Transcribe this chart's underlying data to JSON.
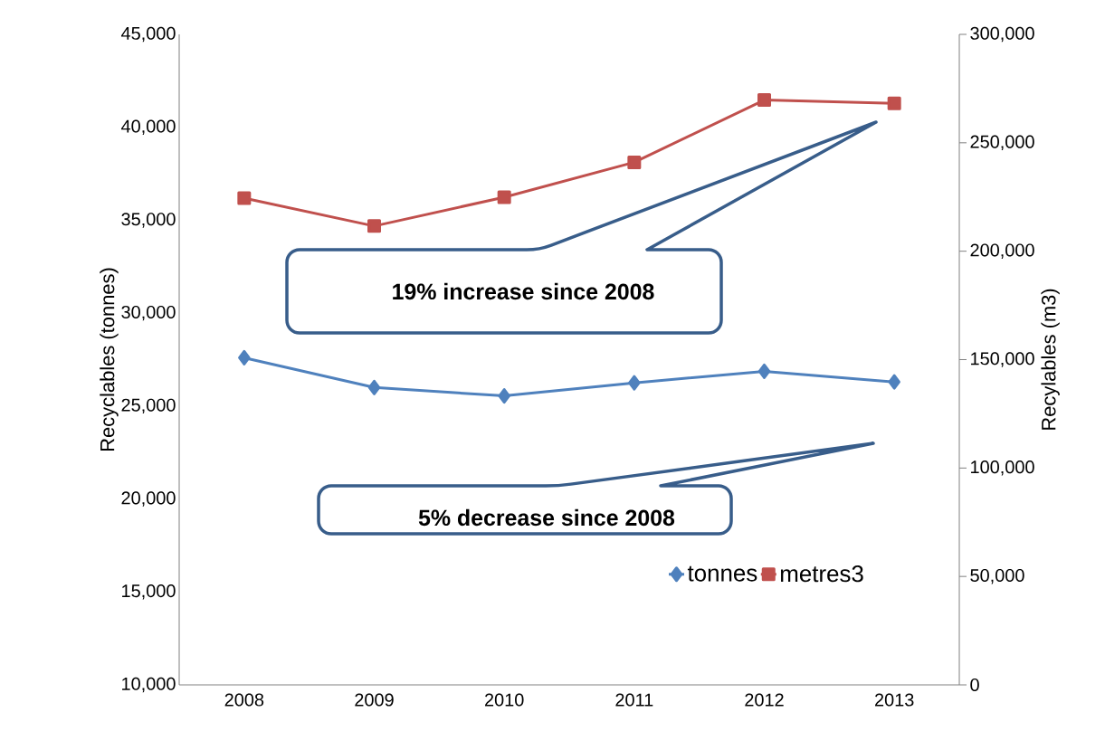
{
  "chart_data": {
    "type": "line",
    "categories": [
      "2008",
      "2009",
      "2010",
      "2011",
      "2012",
      "2013"
    ],
    "series": [
      {
        "name": "tonnes",
        "color": "#4f81bd",
        "marker": "diamond",
        "values": [
          27600,
          26000,
          25550,
          26250,
          26870,
          26300
        ]
      },
      {
        "name": "metres3",
        "color": "#c0504d",
        "marker": "square",
        "axis": "y2",
        "values": [
          224500,
          211600,
          224900,
          241000,
          269700,
          268200
        ]
      }
    ],
    "ylabel": "Recyclables (tonnes)",
    "y2label": "Recylables (m3)",
    "ylim": [
      10000,
      45000
    ],
    "yticks": [
      {
        "value": 10000,
        "label": "10,000"
      },
      {
        "value": 15000,
        "label": "15,000"
      },
      {
        "value": 20000,
        "label": "20,000"
      },
      {
        "value": 25000,
        "label": "25,000"
      },
      {
        "value": 30000,
        "label": "30,000"
      },
      {
        "value": 35000,
        "label": "35,000"
      },
      {
        "value": 40000,
        "label": "40,000"
      },
      {
        "value": 45000,
        "label": "45,000"
      }
    ],
    "y2lim": [
      0,
      300000
    ],
    "y2ticks": [
      0,
      {
        "value": 50000,
        "label": "50,000"
      },
      {
        "value": 100000,
        "label": "100,000"
      },
      {
        "value": 150000,
        "label": "150,000"
      },
      {
        "value": 200000,
        "label": "200,000"
      },
      {
        "value": 250000,
        "label": "250,000"
      },
      {
        "value": 300000,
        "label": "300,000"
      }
    ],
    "annotations": [
      "19% increase since 2008",
      "5% decrease since 2008"
    ],
    "legend": "bottom right",
    "line_style": "solid",
    "grid": false
  }
}
